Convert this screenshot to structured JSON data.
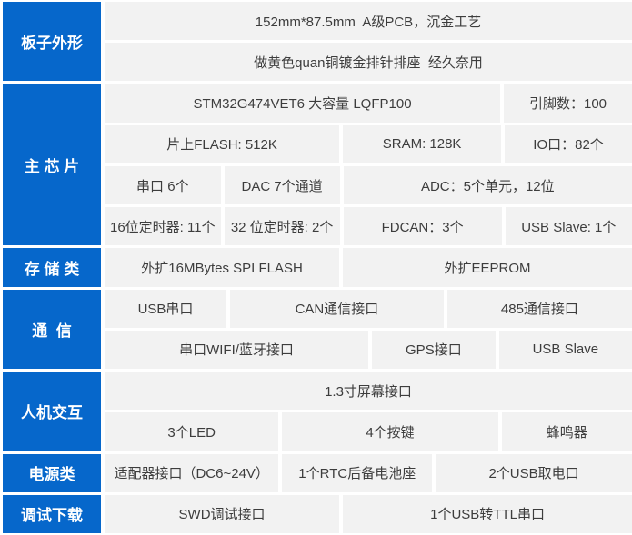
{
  "colors": {
    "accent_blue": "#0667cb",
    "cell_background": "#f2f2f2",
    "cell_text": "#3d3d3d",
    "section_text": "#ffffff"
  },
  "spec_table": {
    "sections": [
      {
        "label": "板子外形"
      },
      {
        "label": "主 芯 片"
      },
      {
        "label": "存 储 类"
      },
      {
        "label": "通  信"
      },
      {
        "label": "人机交互"
      },
      {
        "label": "电源类"
      },
      {
        "label": "调试下载"
      }
    ],
    "rows": [
      {
        "cells": [
          {
            "text": "152mm*87.5mm  A级PCB，沉金工艺"
          }
        ]
      },
      {
        "cells": [
          {
            "text": "做黄色quan铜镀金排针排座  经久奈用"
          }
        ]
      },
      {
        "cells": [
          {
            "text": "STM32G474VET6 大容量 LQFP100"
          },
          {
            "text": "引脚数：100"
          }
        ]
      },
      {
        "cells": [
          {
            "text": "片上FLASH: 512K"
          },
          {
            "text": "SRAM: 128K"
          },
          {
            "text": "IO口：82个"
          }
        ]
      },
      {
        "cells": [
          {
            "text": "串口 6个"
          },
          {
            "text": "DAC 7个通道"
          },
          {
            "text": "ADC：5个单元，12位"
          }
        ]
      },
      {
        "cells": [
          {
            "text": "16位定时器: 11个"
          },
          {
            "text": "32 位定时器: 2个"
          },
          {
            "text": "FDCAN：3个"
          },
          {
            "text": "USB Slave: 1个"
          }
        ]
      },
      {
        "cells": [
          {
            "text": "外扩16MBytes SPI FLASH"
          },
          {
            "text": "外扩EEPROM"
          }
        ]
      },
      {
        "cells": [
          {
            "text": "USB串口"
          },
          {
            "text": "CAN通信接口"
          },
          {
            "text": "485通信接口"
          }
        ]
      },
      {
        "cells": [
          {
            "text": "串口WIFI/蓝牙接口"
          },
          {
            "text": "GPS接口"
          },
          {
            "text": "USB Slave"
          }
        ]
      },
      {
        "cells": [
          {
            "text": "1.3寸屏幕接口"
          }
        ]
      },
      {
        "cells": [
          {
            "text": "3个LED"
          },
          {
            "text": "4个按键"
          },
          {
            "text": "蜂鸣器"
          }
        ]
      },
      {
        "cells": [
          {
            "text": "适配器接口（DC6~24V）"
          },
          {
            "text": "1个RTC后备电池座"
          },
          {
            "text": "2个USB取电口"
          }
        ]
      },
      {
        "cells": [
          {
            "text": "SWD调试接口"
          },
          {
            "text": "1个USB转TTL串口"
          }
        ]
      }
    ]
  }
}
